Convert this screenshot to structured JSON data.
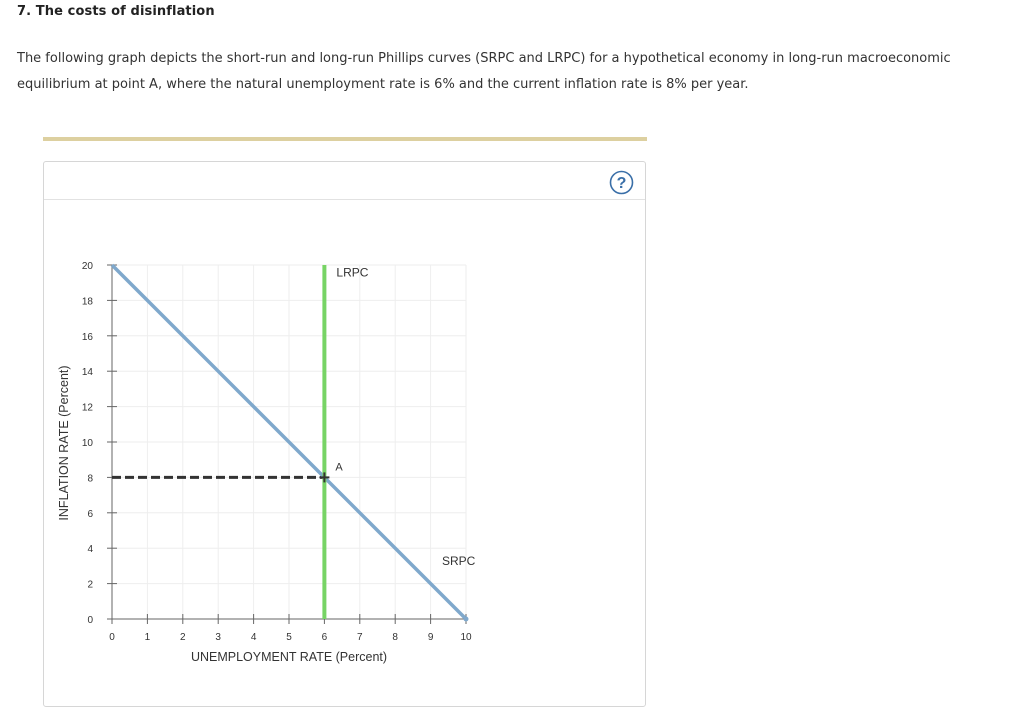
{
  "question": {
    "heading": "7. The costs of disinflation",
    "intro_line1": "The following graph depicts the short-run and long-run Phillips curves (SRPC and LRPC) for a hypothetical economy in long-run macroeconomic",
    "intro_line2": "equilibrium at point A, where the natural unemployment rate is 6% and the current inflation rate is 8% per year."
  },
  "help": {
    "label": "?"
  },
  "colors": {
    "srpc": "#7fa8cc",
    "lrpc": "#77d465",
    "dashed": "#333333",
    "grid": "#eeeeee",
    "axis": "#666666",
    "help": "#3a6fa8"
  },
  "chart_data": {
    "type": "line",
    "xlabel": "UNEMPLOYMENT RATE (Percent)",
    "ylabel": "INFLATION RATE (Percent)",
    "xlim": [
      0,
      10
    ],
    "ylim": [
      0,
      20
    ],
    "x_ticks": [
      0,
      1,
      2,
      3,
      4,
      5,
      6,
      7,
      8,
      9,
      10
    ],
    "y_ticks": [
      0,
      2,
      4,
      6,
      8,
      10,
      12,
      14,
      16,
      18,
      20
    ],
    "grid": true,
    "series": [
      {
        "name": "SRPC",
        "x": [
          0,
          10
        ],
        "y": [
          20,
          0
        ]
      },
      {
        "name": "LRPC",
        "x": [
          6,
          6
        ],
        "y": [
          0,
          20
        ]
      }
    ],
    "reference_lines": [
      {
        "style": "dashed",
        "x": [
          0,
          6
        ],
        "y": [
          8,
          8
        ]
      }
    ],
    "points": [
      {
        "label": "A",
        "x": 6,
        "y": 8
      }
    ]
  }
}
